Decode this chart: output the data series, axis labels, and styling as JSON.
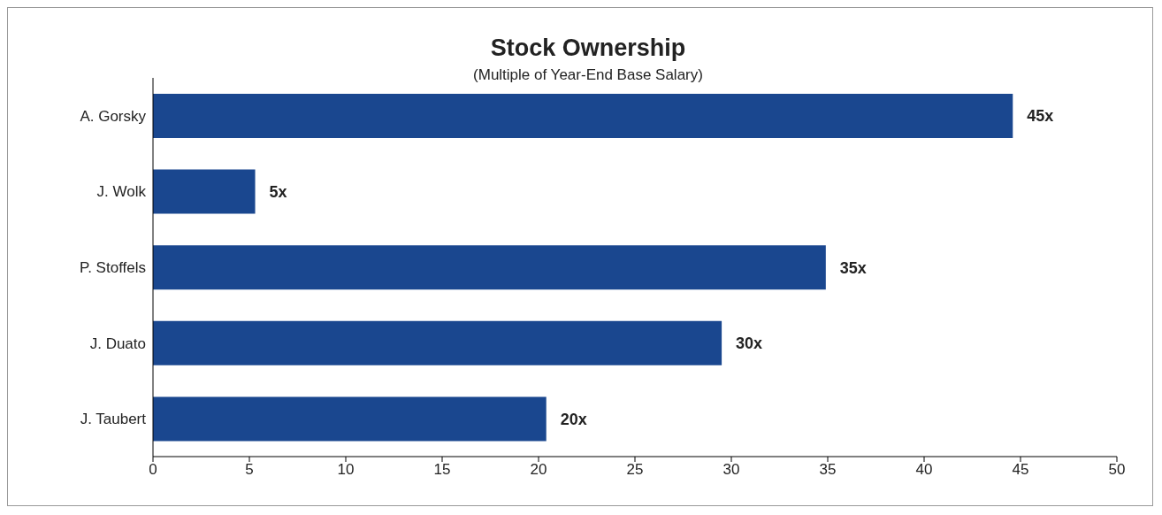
{
  "chart_data": {
    "type": "bar",
    "orientation": "horizontal",
    "title": "Stock Ownership",
    "subtitle": "(Multiple of Year-End Base Salary)",
    "categories": [
      "A. Gorsky",
      "J. Wolk",
      "P. Stoffels",
      "J. Duato",
      "J. Taubert"
    ],
    "values": [
      44.6,
      5.3,
      34.9,
      29.5,
      20.4
    ],
    "value_labels": [
      "45x",
      "5x",
      "35x",
      "30x",
      "20x"
    ],
    "color": "#1a478f",
    "xlim": [
      0,
      50
    ],
    "xticks": [
      0,
      5,
      10,
      15,
      20,
      25,
      30,
      35,
      40,
      45,
      50
    ],
    "grid": false,
    "legend": false
  }
}
